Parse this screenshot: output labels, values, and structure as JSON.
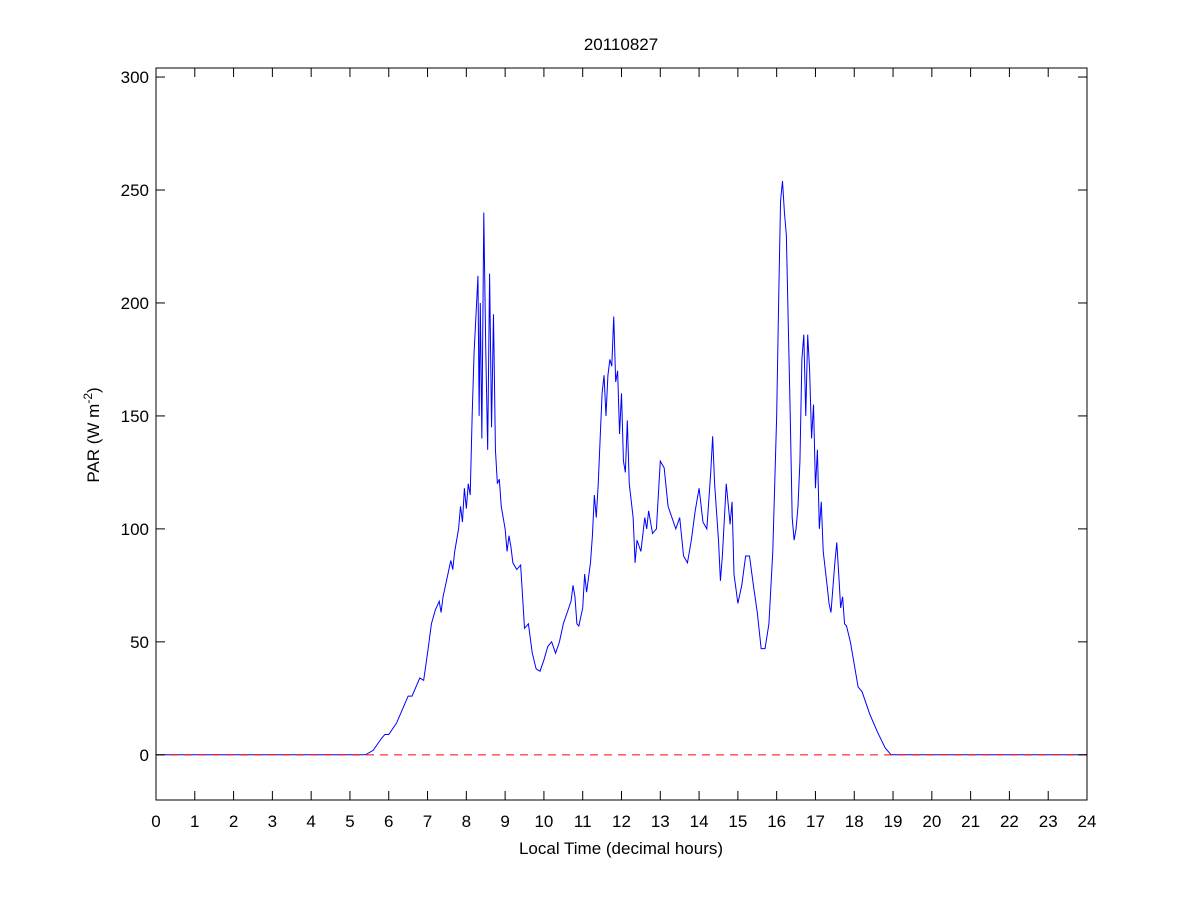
{
  "chart_data": {
    "type": "line",
    "title": "20110827",
    "xlabel": "Local Time (decimal hours)",
    "ylabel": {
      "text": "PAR (W m",
      "superscript": "-2",
      "suffix": ")"
    },
    "x": [
      0,
      5.4,
      5.6,
      5.8,
      5.9,
      6.0,
      6.2,
      6.4,
      6.5,
      6.6,
      6.7,
      6.8,
      6.9,
      7.0,
      7.1,
      7.2,
      7.3,
      7.35,
      7.4,
      7.5,
      7.6,
      7.65,
      7.7,
      7.8,
      7.85,
      7.9,
      7.95,
      8.0,
      8.05,
      8.1,
      8.15,
      8.2,
      8.25,
      8.3,
      8.33,
      8.36,
      8.4,
      8.45,
      8.5,
      8.55,
      8.6,
      8.65,
      8.7,
      8.75,
      8.8,
      8.85,
      8.9,
      9.0,
      9.05,
      9.1,
      9.15,
      9.2,
      9.3,
      9.4,
      9.45,
      9.5,
      9.6,
      9.7,
      9.8,
      9.9,
      10.0,
      10.1,
      10.2,
      10.3,
      10.4,
      10.5,
      10.6,
      10.7,
      10.75,
      10.8,
      10.85,
      10.9,
      11.0,
      11.05,
      11.1,
      11.2,
      11.25,
      11.3,
      11.35,
      11.4,
      11.45,
      11.5,
      11.55,
      11.6,
      11.65,
      11.7,
      11.75,
      11.8,
      11.85,
      11.9,
      11.95,
      12.0,
      12.05,
      12.1,
      12.15,
      12.2,
      12.3,
      12.35,
      12.4,
      12.5,
      12.6,
      12.65,
      12.7,
      12.8,
      12.9,
      13.0,
      13.1,
      13.2,
      13.3,
      13.4,
      13.5,
      13.6,
      13.7,
      13.8,
      13.9,
      14.0,
      14.1,
      14.2,
      14.3,
      14.35,
      14.4,
      14.5,
      14.55,
      14.6,
      14.7,
      14.8,
      14.85,
      14.9,
      15.0,
      15.1,
      15.2,
      15.3,
      15.4,
      15.5,
      15.6,
      15.7,
      15.8,
      15.9,
      16.0,
      16.05,
      16.1,
      16.15,
      16.2,
      16.25,
      16.3,
      16.35,
      16.4,
      16.45,
      16.5,
      16.55,
      16.6,
      16.65,
      16.7,
      16.75,
      16.8,
      16.85,
      16.9,
      16.95,
      17.0,
      17.05,
      17.1,
      17.15,
      17.2,
      17.3,
      17.35,
      17.4,
      17.5,
      17.55,
      17.6,
      17.65,
      17.7,
      17.75,
      17.8,
      17.9,
      18.0,
      18.1,
      18.2,
      18.4,
      18.6,
      18.8,
      18.95,
      24
    ],
    "series": [
      {
        "name": "PAR",
        "color": "#0000ff",
        "values": [
          0,
          0,
          2,
          7,
          9,
          9,
          14,
          22,
          26,
          26,
          30,
          34,
          33,
          45,
          58,
          64,
          68,
          63,
          70,
          78,
          86,
          82,
          90,
          100,
          110,
          103,
          118,
          109,
          120,
          115,
          150,
          178,
          195,
          212,
          150,
          200,
          140,
          240,
          180,
          135,
          213,
          145,
          195,
          135,
          120,
          122,
          110,
          100,
          90,
          97,
          92,
          85,
          82,
          84,
          70,
          56,
          58,
          45,
          38,
          37,
          42,
          48,
          50,
          45,
          50,
          58,
          63,
          68,
          75,
          70,
          58,
          57,
          65,
          80,
          72,
          85,
          97,
          115,
          105,
          120,
          140,
          160,
          168,
          150,
          168,
          175,
          172,
          194,
          165,
          170,
          142,
          160,
          130,
          125,
          148,
          120,
          105,
          85,
          95,
          90,
          105,
          100,
          108,
          98,
          100,
          130,
          127,
          110,
          105,
          100,
          105,
          88,
          85,
          95,
          108,
          118,
          103,
          100,
          125,
          141,
          120,
          95,
          77,
          88,
          120,
          102,
          112,
          80,
          67,
          75,
          88,
          88,
          75,
          63,
          47,
          47,
          58,
          90,
          150,
          200,
          245,
          254,
          240,
          230,
          190,
          150,
          105,
          95,
          100,
          110,
          130,
          175,
          186,
          150,
          186,
          170,
          140,
          155,
          118,
          135,
          100,
          112,
          90,
          75,
          67,
          63,
          85,
          94,
          80,
          65,
          70,
          58,
          57,
          50,
          40,
          30,
          28,
          18,
          10,
          3,
          0,
          0
        ]
      }
    ],
    "reference_line": {
      "value": 0,
      "color": "#ff0000",
      "style": "dashed"
    },
    "xlim": [
      0,
      24
    ],
    "xticks": [
      0,
      1,
      2,
      3,
      4,
      5,
      6,
      7,
      8,
      9,
      10,
      11,
      12,
      13,
      14,
      15,
      16,
      17,
      18,
      19,
      20,
      21,
      22,
      23,
      24
    ],
    "ylim": [
      -20,
      304
    ],
    "yticks": [
      0,
      50,
      100,
      150,
      200,
      250,
      300
    ]
  }
}
